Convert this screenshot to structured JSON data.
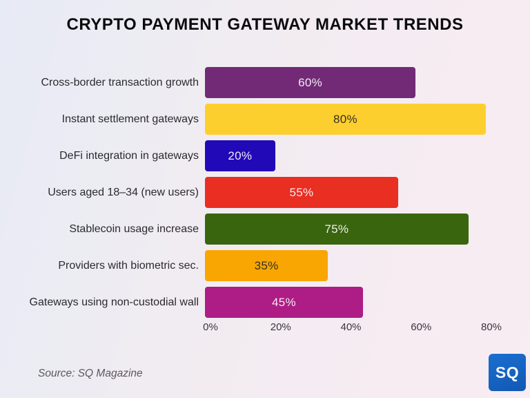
{
  "title": "CRYPTO PAYMENT GATEWAY MARKET TRENDS",
  "source": "Source: SQ Magazine",
  "logo": {
    "text": "SQ",
    "bg_color": "#1565c4"
  },
  "chart_data": {
    "type": "bar",
    "orientation": "horizontal",
    "title": "CRYPTO PAYMENT GATEWAY MARKET TRENDS",
    "categories": [
      "Cross-border transaction growth",
      "Instant settlement gateways",
      "DeFi integration in gateways",
      "Users aged 18–34 (new users)",
      "Stablecoin usage increase",
      "Providers with biometric sec.",
      "Gateways using non-custodial wall"
    ],
    "values": [
      60,
      80,
      20,
      55,
      75,
      35,
      45
    ],
    "value_labels": [
      "60%",
      "80%",
      "20%",
      "55%",
      "75%",
      "35%",
      "45%"
    ],
    "bar_colors": [
      "#722A77",
      "#FDCF2E",
      "#2209B8",
      "#E92E22",
      "#3A650F",
      "#F9A602",
      "#AD1D85"
    ],
    "value_text_colors": [
      "#f3ebf1",
      "#332f2a",
      "#f3ebf1",
      "#f6efee",
      "#eef0e9",
      "#33302a",
      "#f4e9f0"
    ],
    "xlabel": "",
    "ylabel": "",
    "xlim": [
      0,
      80
    ],
    "xticks": [
      0,
      20,
      40,
      60,
      80
    ],
    "xtick_labels": [
      "0%",
      "20%",
      "40%",
      "60%",
      "80%"
    ],
    "grid": false,
    "legend": false
  }
}
